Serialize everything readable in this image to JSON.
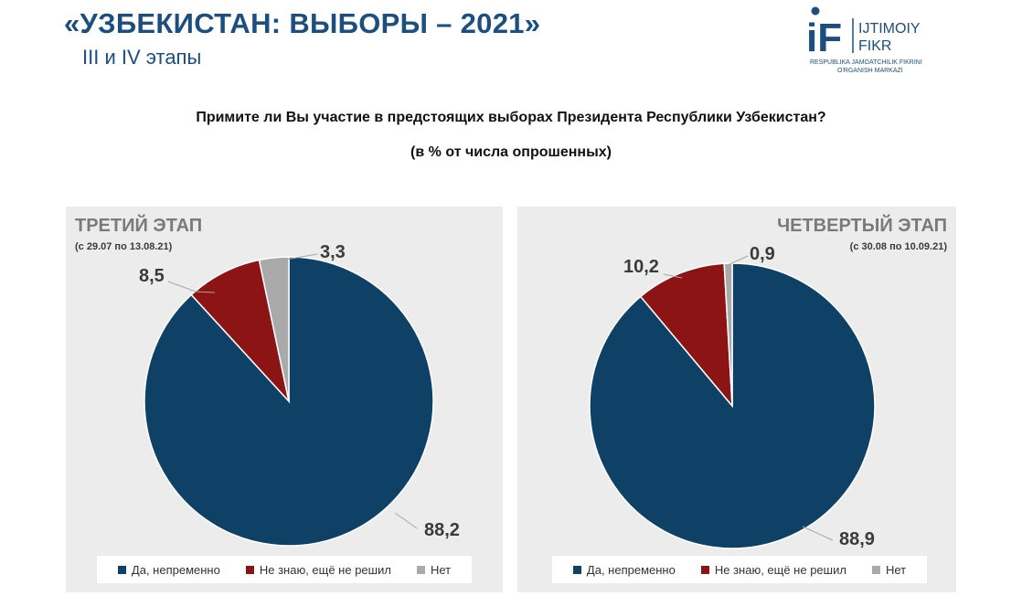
{
  "header": {
    "title": "«УЗБЕКИСТАН: ВЫБОРЫ – 2021»",
    "subtitle": "III и IV этапы"
  },
  "logo": {
    "letters": "iF",
    "name_line1": "IJTIMOIY",
    "name_line2": "FIKR",
    "tagline_line1": "RESPUBLIKA JAMOATCHILIK FIKRINI",
    "tagline_line2": "O'RGANISH MARKAZI",
    "color": "#1c4f80"
  },
  "question": "Примите ли Вы участие в предстоящих выборах Президента Республики Узбекистан?",
  "unit_note": "(в % от числа опрошенных)",
  "colors": {
    "yes": "#0f4166",
    "dont_know": "#8c1414",
    "no": "#aaaaaa"
  },
  "chart_data": [
    {
      "type": "pie",
      "title": "ТРЕТИЙ ЭТАП",
      "subtitle": "(с 29.07 по 13.08.21)",
      "categories": [
        "Да, непременно",
        "Не знаю, ещё не решил",
        "Нет"
      ],
      "values": [
        88.2,
        8.5,
        3.3
      ],
      "labels": [
        "88,2",
        "8,5",
        "3,3"
      ],
      "legend": "bottom"
    },
    {
      "type": "pie",
      "title": "ЧЕТВЕРТЫЙ ЭТАП",
      "subtitle": "(с 30.08 по 10.09.21)",
      "categories": [
        "Да, непременно",
        "Не знаю, ещё не решил",
        "Нет"
      ],
      "values": [
        88.9,
        10.2,
        0.9
      ],
      "labels": [
        "88,9",
        "10,2",
        "0,9"
      ],
      "legend": "bottom"
    }
  ]
}
